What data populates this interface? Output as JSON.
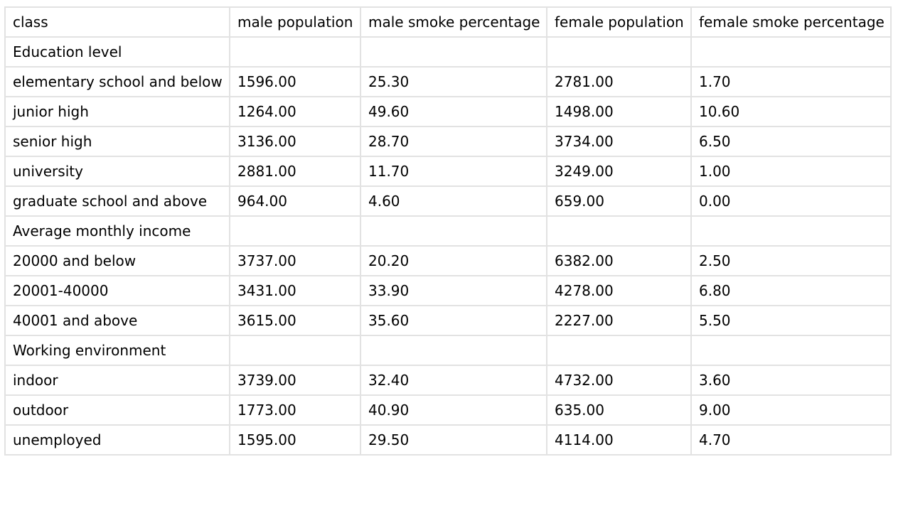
{
  "table": {
    "headers": [
      "class",
      "male population",
      "male smoke percentage",
      "female population",
      "female smoke percentage"
    ],
    "rows": [
      [
        "Education level",
        "",
        "",
        "",
        ""
      ],
      [
        "elementary school and below",
        "1596.00",
        "25.30",
        "2781.00",
        "1.70"
      ],
      [
        "junior high",
        "1264.00",
        "49.60",
        "1498.00",
        "10.60"
      ],
      [
        "senior high",
        "3136.00",
        "28.70",
        "3734.00",
        "6.50"
      ],
      [
        "university",
        "2881.00",
        "11.70",
        "3249.00",
        "1.00"
      ],
      [
        "graduate school and above",
        "964.00",
        "4.60",
        "659.00",
        "0.00"
      ],
      [
        "Average monthly income",
        "",
        "",
        "",
        ""
      ],
      [
        "20000 and below",
        "3737.00",
        "20.20",
        "6382.00",
        "2.50"
      ],
      [
        "20001-40000",
        "3431.00",
        "33.90",
        "4278.00",
        "6.80"
      ],
      [
        "40001 and above",
        "3615.00",
        "35.60",
        "2227.00",
        "5.50"
      ],
      [
        "Working environment",
        "",
        "",
        "",
        ""
      ],
      [
        "indoor",
        "3739.00",
        "32.40",
        "4732.00",
        "3.60"
      ],
      [
        "outdoor",
        "1773.00",
        "40.90",
        "635.00",
        "9.00"
      ],
      [
        "unemployed",
        "1595.00",
        "29.50",
        "4114.00",
        "4.70"
      ]
    ]
  }
}
